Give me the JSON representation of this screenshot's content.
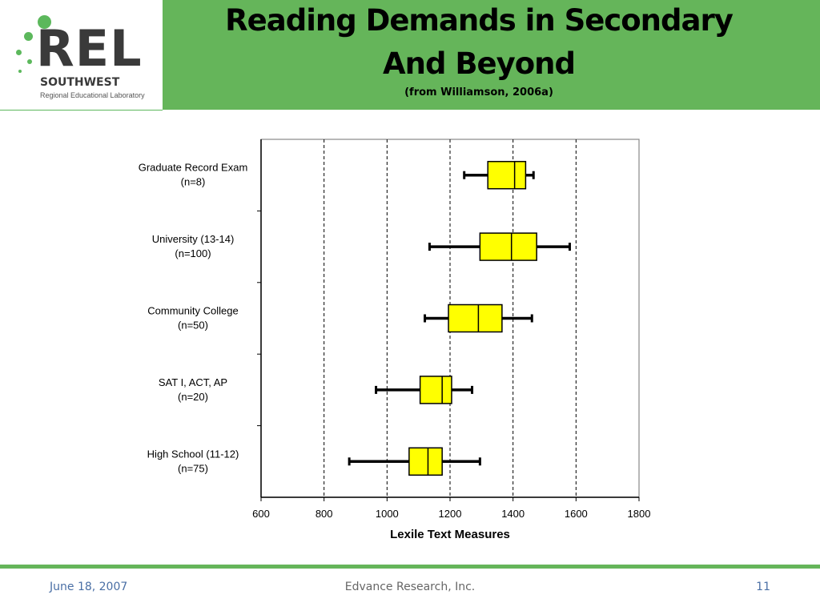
{
  "header": {
    "title_line1": "Reading Demands in Secondary",
    "title_line2": "And Beyond",
    "source": "(from Williamson, 2006a)"
  },
  "logo": {
    "name": "REL",
    "region": "SOUTHWEST",
    "subtitle": "Regional Educational Laboratory"
  },
  "chart_data": {
    "type": "boxplot",
    "xlabel": "Lexile Text Measures",
    "xlim": [
      600,
      1800
    ],
    "x_ticks": [
      600,
      800,
      1000,
      1200,
      1400,
      1600,
      1800
    ],
    "grid": "vertical dashed",
    "categories": [
      {
        "label": "Graduate Record Exam",
        "n": "(n=8)",
        "whisker_low": 1245,
        "q1": 1320,
        "median": 1405,
        "q3": 1440,
        "whisker_high": 1465
      },
      {
        "label": "University (13-14)",
        "n": "(n=100)",
        "whisker_low": 1135,
        "q1": 1295,
        "median": 1395,
        "q3": 1475,
        "whisker_high": 1580
      },
      {
        "label": "Community College",
        "n": "(n=50)",
        "whisker_low": 1120,
        "q1": 1195,
        "median": 1290,
        "q3": 1365,
        "whisker_high": 1460
      },
      {
        "label": "SAT I, ACT, AP",
        "n": "(n=20)",
        "whisker_low": 965,
        "q1": 1105,
        "median": 1175,
        "q3": 1205,
        "whisker_high": 1270
      },
      {
        "label": "High School (11-12)",
        "n": "(n=75)",
        "whisker_low": 880,
        "q1": 1070,
        "median": 1130,
        "q3": 1175,
        "whisker_high": 1295
      }
    ],
    "box_color": "#ffff00"
  },
  "footer": {
    "date": "June 18, 2007",
    "organization": "Edvance Research, Inc.",
    "page": "11"
  }
}
